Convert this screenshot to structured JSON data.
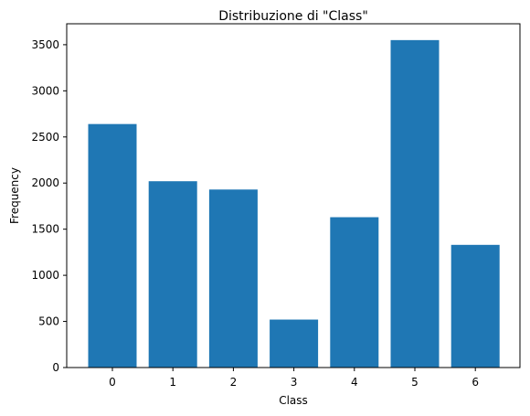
{
  "chart_data": {
    "type": "bar",
    "title": "Distribuzione di \"Class\"",
    "xlabel": "Class",
    "ylabel": "Frequency",
    "categories": [
      "0",
      "1",
      "2",
      "3",
      "4",
      "5",
      "6"
    ],
    "values": [
      2640,
      2020,
      1930,
      520,
      1630,
      3550,
      1330
    ],
    "ylim": [
      0,
      3727
    ],
    "yticks": [
      0,
      500,
      1000,
      1500,
      2000,
      2500,
      3000,
      3500
    ],
    "grid": false,
    "legend": "none",
    "bar_color": "#1f77b4"
  }
}
